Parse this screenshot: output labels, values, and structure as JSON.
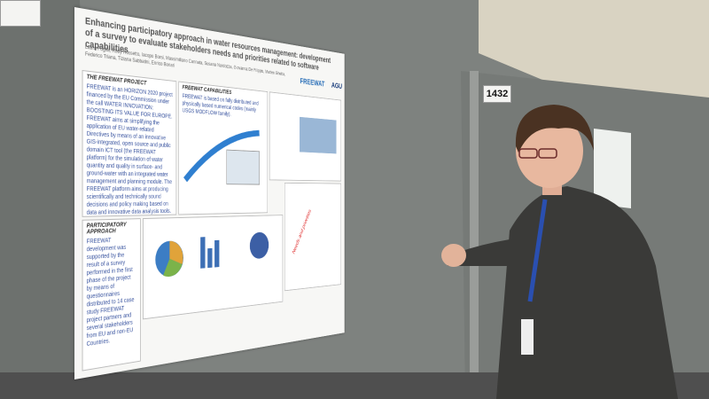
{
  "board_numbers": [
    "1432"
  ],
  "poster": {
    "title": "Enhancing participatory approach in water resources management: development of a survey to evaluate stakeholders needs and priorities related to software capabilities",
    "authors": "Laura Foglia, Rudy Rossetto, Iacopo Borsi, Massimiliano Cannata, Susana Nardozza, Giovanna De Filippis, Matteo Ghetta, Federico Triana, Tiziana Sabbatini, Enrico Bonari",
    "logos": [
      "FREEWAT",
      "AGU"
    ],
    "sections": [
      {
        "heading": "THE FREEWAT PROJECT",
        "text": "FREEWAT is an HORIZON 2020 project financed by the EU Commission under the call WATER INNOVATION: BOOSTING ITS VALUE FOR EUROPE. FREEWAT aims at simplifying the application of EU water-related Directives by means of an innovative GIS-integrated, open source and public domain ICT tool (the FREEWAT platform) for the simulation of water quantity and quality in surface- and ground-water with an integrated water management and planning module. The FREEWAT platform aims at producing scientifically and technically sound decisions and policy making based on data and innovative data analysis tools."
      },
      {
        "heading": "FREEWAT CAPABILITIES",
        "text": "FREEWAT is based on fully distributed and physically based numerical codes (mainly USGS MODFLOW family)."
      },
      {
        "heading": "PARTICIPATORY APPROACH",
        "text": "FREEWAT development was supported by the result of a survey performed in the first phase of the project by means of questionnaires distributed to 14 case study FREEWAT project partners and several stakeholders from EU and non-EU Countries."
      }
    ],
    "annotation": "Needs and priorities"
  }
}
